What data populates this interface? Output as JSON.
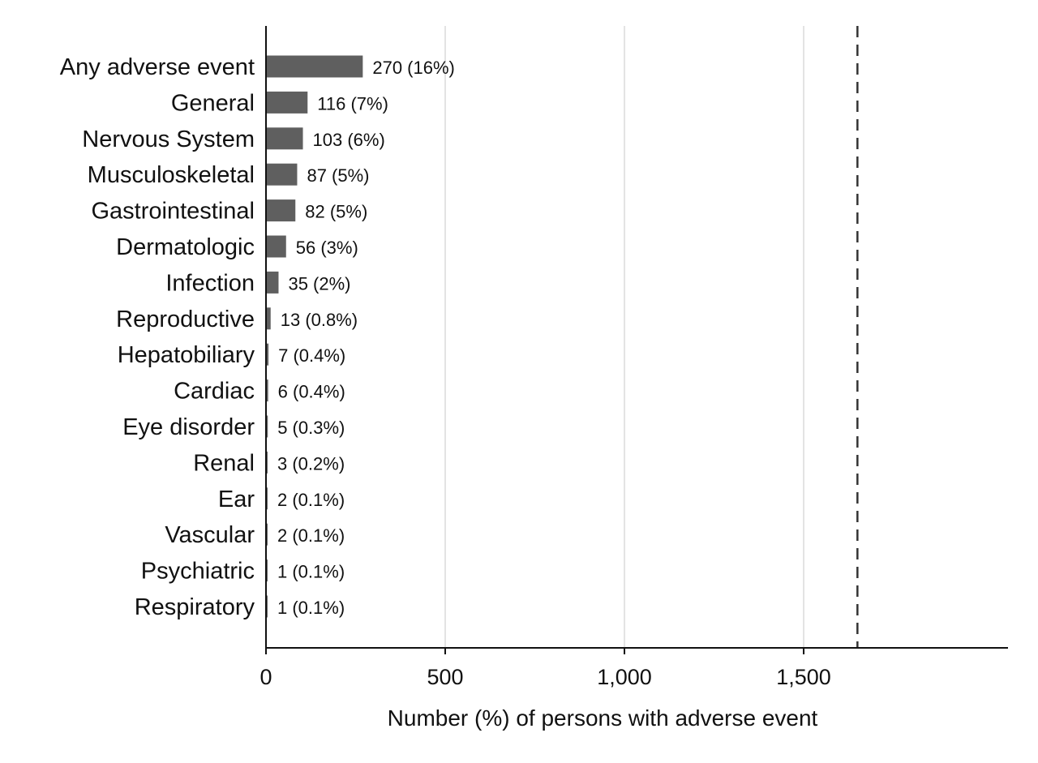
{
  "chart_data": {
    "type": "bar",
    "orientation": "horizontal",
    "title": "",
    "xlabel": "Number (%) of persons with adverse event",
    "ylabel": "",
    "categories": [
      "Any adverse event",
      "General",
      "Nervous System",
      "Musculoskeletal",
      "Gastrointestinal",
      "Dermatologic",
      "Infection",
      "Reproductive",
      "Hepatobiliary",
      "Cardiac",
      "Eye disorder",
      "Renal",
      "Ear",
      "Vascular",
      "Psychiatric",
      "Respiratory"
    ],
    "values": [
      270,
      116,
      103,
      87,
      82,
      56,
      35,
      13,
      7,
      6,
      5,
      3,
      2,
      2,
      1,
      1
    ],
    "data_labels": [
      "270 (16%)",
      "116 (7%)",
      "103 (6%)",
      "87 (5%)",
      "82 (5%)",
      "56 (3%)",
      "35 (2%)",
      "13 (0.8%)",
      "7 (0.4%)",
      "6 (0.4%)",
      "5 (0.3%)",
      "3 (0.2%)",
      "2 (0.1%)",
      "2 (0.1%)",
      "1 (0.1%)",
      "1 (0.1%)"
    ],
    "xlim": [
      0,
      2070
    ],
    "xticks": [
      0,
      500,
      1000,
      1500
    ],
    "xtick_labels": [
      "0",
      "500",
      "1,000",
      "1,500"
    ],
    "reference_line": 1650,
    "reference_line_style": "dashed",
    "grid": "vertical",
    "legend": "none",
    "colors": {
      "bar": "#5f5f5f",
      "grid": "#e3e3e3",
      "axis": "#111111",
      "reference": "#333333"
    }
  }
}
